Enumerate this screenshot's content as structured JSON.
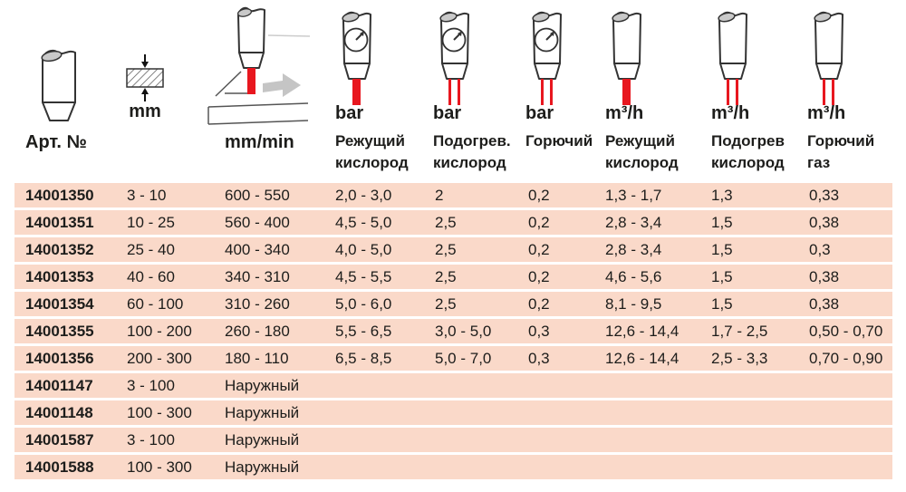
{
  "header": {
    "art_label": "Арт. №",
    "thickness_unit": "mm",
    "speed_unit": "mm/min",
    "gas_columns": [
      {
        "unit": "bar",
        "label_line1": "Режущий",
        "label_line2": "кислород",
        "icon": "torch-gauge-single-jet-icon",
        "gauge": true,
        "jets": "single"
      },
      {
        "unit": "bar",
        "label_line1": "Подогрев.",
        "label_line2": "кислород",
        "icon": "torch-gauge-double-jet-icon",
        "gauge": true,
        "jets": "double"
      },
      {
        "unit": "bar",
        "label_line1": "Горючий",
        "label_line2": "",
        "icon": "torch-gauge-double-jet-icon",
        "gauge": true,
        "jets": "double"
      },
      {
        "unit": "m³/h",
        "label_line1": "Режущий",
        "label_line2": "кислород",
        "icon": "torch-single-jet-icon",
        "gauge": false,
        "jets": "single"
      },
      {
        "unit": "m³/h",
        "label_line1": "Подогрев",
        "label_line2": "кислород",
        "icon": "torch-double-jet-icon",
        "gauge": false,
        "jets": "double"
      },
      {
        "unit": "m³/h",
        "label_line1": "Горючий",
        "label_line2": "газ",
        "icon": "torch-double-jet-icon",
        "gauge": false,
        "jets": "double"
      }
    ],
    "pictogram_icons": [
      "nozzle-icon",
      "plate-thickness-icon",
      "torch-cutting-speed-icon"
    ]
  },
  "colors": {
    "row_bg": "#fad9c9",
    "flame_red": "#e8171f",
    "outline": "#333333",
    "metal_gray": "#c9c9c9",
    "arrow_gray": "#c5c5c5",
    "text": "#1d1d1b"
  },
  "chart_data": {
    "type": "table",
    "columns": [
      "Арт. №",
      "mm",
      "mm/min",
      "bar Режущий кислород",
      "bar Подогрев. кислород",
      "bar Горючий",
      "m³/h Режущий кислород",
      "m³/h Подогрев кислород",
      "m³/h Горючий газ"
    ],
    "rows": [
      [
        "14001350",
        "3 - 10",
        "600 - 550",
        "2,0 - 3,0",
        "2",
        "0,2",
        "1,3 - 1,7",
        "1,3",
        "0,33"
      ],
      [
        "14001351",
        "10 - 25",
        "560 - 400",
        "4,5 - 5,0",
        "2,5",
        "0,2",
        "2,8 - 3,4",
        "1,5",
        "0,38"
      ],
      [
        "14001352",
        "25 - 40",
        "400 - 340",
        "4,0 - 5,0",
        "2,5",
        "0,2",
        "2,8 - 3,4",
        "1,5",
        "0,3"
      ],
      [
        "14001353",
        "40 - 60",
        "340 - 310",
        "4,5 - 5,5",
        "2,5",
        "0,2",
        "4,6 - 5,6",
        "1,5",
        "0,38"
      ],
      [
        "14001354",
        "60 - 100",
        "310 - 260",
        "5,0 - 6,0",
        "2,5",
        "0,2",
        "8,1 - 9,5",
        "1,5",
        "0,38"
      ],
      [
        "14001355",
        "100 - 200",
        "260 - 180",
        "5,5 - 6,5",
        "3,0 - 5,0",
        "0,3",
        "12,6 - 14,4",
        "1,7 - 2,5",
        "0,50 - 0,70"
      ],
      [
        "14001356",
        "200 - 300",
        "180 - 110",
        "6,5 - 8,5",
        "5,0 - 7,0",
        "0,3",
        "12,6 - 14,4",
        "2,5 - 3,3",
        "0,70 - 0,90"
      ],
      [
        "14001147",
        "3 - 100",
        "Наружный",
        "",
        "",
        "",
        "",
        "",
        ""
      ],
      [
        "14001148",
        "100 - 300",
        "Наружный",
        "",
        "",
        "",
        "",
        "",
        ""
      ],
      [
        "14001587",
        "3 - 100",
        "Наружный",
        "",
        "",
        "",
        "",
        "",
        ""
      ],
      [
        "14001588",
        "100 - 300",
        "Наружный",
        "",
        "",
        "",
        "",
        "",
        ""
      ]
    ]
  }
}
